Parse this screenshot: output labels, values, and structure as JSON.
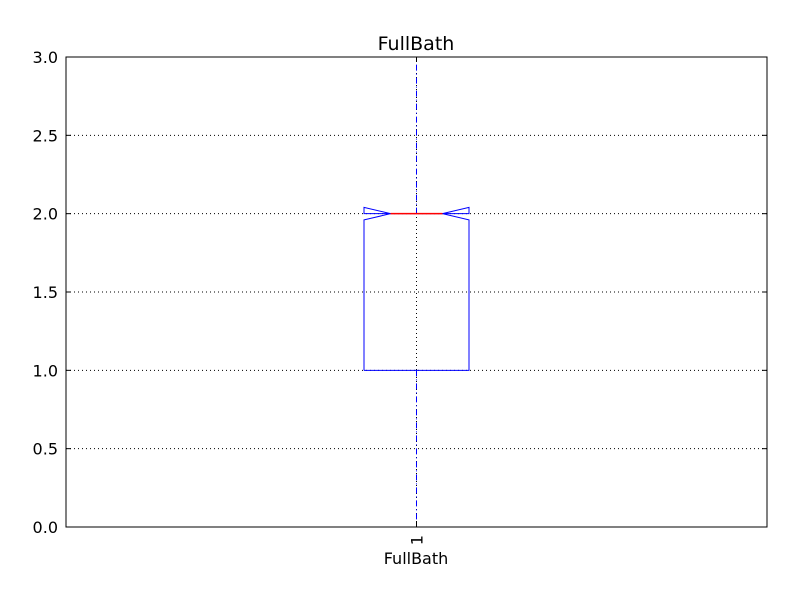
{
  "chart_data": {
    "type": "box",
    "title": "FullBath",
    "xlabel": "FullBath",
    "ylabel": "",
    "categories": [
      "1"
    ],
    "ylim": [
      0,
      3
    ],
    "yticks": [
      "0.0",
      "0.5",
      "1.0",
      "1.5",
      "2.0",
      "2.5",
      "3.0"
    ],
    "grid": true,
    "notched": true,
    "boxes": [
      {
        "label": "1",
        "whislo": 0,
        "q1": 1,
        "median": 2,
        "q3": 2,
        "whishi": 3,
        "notch_low": 1.96,
        "notch_high": 2.04
      }
    ],
    "colors": {
      "box": "#0000ff",
      "median": "#ff0000",
      "whisker": "#0000ff",
      "cap": "#000000",
      "grid": "#000000",
      "axes": "#000000"
    }
  }
}
